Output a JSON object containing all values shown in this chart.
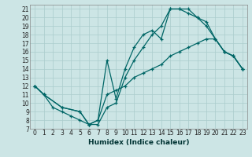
{
  "background_color": "#cce5e5",
  "grid_color": "#aacccc",
  "line_color": "#006666",
  "xlabel": "Humidex (Indice chaleur)",
  "xlim": [
    -0.5,
    23.5
  ],
  "ylim": [
    7,
    21.5
  ],
  "xticks": [
    0,
    1,
    2,
    3,
    4,
    5,
    6,
    7,
    8,
    9,
    10,
    11,
    12,
    13,
    14,
    15,
    16,
    17,
    18,
    19,
    20,
    21,
    22,
    23
  ],
  "yticks": [
    7,
    8,
    9,
    10,
    11,
    12,
    13,
    14,
    15,
    16,
    17,
    18,
    19,
    20,
    21
  ],
  "line1_x": [
    0,
    1,
    2,
    3,
    4,
    5,
    6,
    7,
    8,
    9,
    10,
    11,
    12,
    13,
    14,
    15,
    16,
    17,
    18,
    19,
    20,
    21,
    22,
    23
  ],
  "line1_y": [
    12,
    11,
    9.5,
    9,
    8.5,
    8,
    7.5,
    7.5,
    9.5,
    10,
    13,
    15,
    16.5,
    18,
    19,
    21,
    21,
    21,
    20,
    19.5,
    17.5,
    16,
    15.5,
    14
  ],
  "line2_x": [
    0,
    1,
    3,
    5,
    6,
    7,
    8,
    9,
    10,
    11,
    12,
    13,
    14,
    15,
    16,
    17,
    18,
    19,
    20,
    21,
    22,
    23
  ],
  "line2_y": [
    12,
    11,
    9.5,
    9,
    7.5,
    8,
    15,
    10.5,
    14,
    16.5,
    18,
    18.5,
    17.5,
    21,
    21,
    20.5,
    20,
    19,
    17.5,
    16,
    15.5,
    14
  ],
  "line3_x": [
    0,
    1,
    3,
    5,
    6,
    7,
    8,
    9,
    10,
    11,
    12,
    13,
    14,
    15,
    16,
    17,
    18,
    19,
    20,
    21,
    22,
    23
  ],
  "line3_y": [
    12,
    11,
    9.5,
    9,
    7.5,
    8,
    11,
    11.5,
    12,
    13,
    13.5,
    14,
    14.5,
    15.5,
    16,
    16.5,
    17,
    17.5,
    17.5,
    16,
    15.5,
    14
  ],
  "xlabel_fontsize": 6.5,
  "tick_fontsize": 5.5
}
